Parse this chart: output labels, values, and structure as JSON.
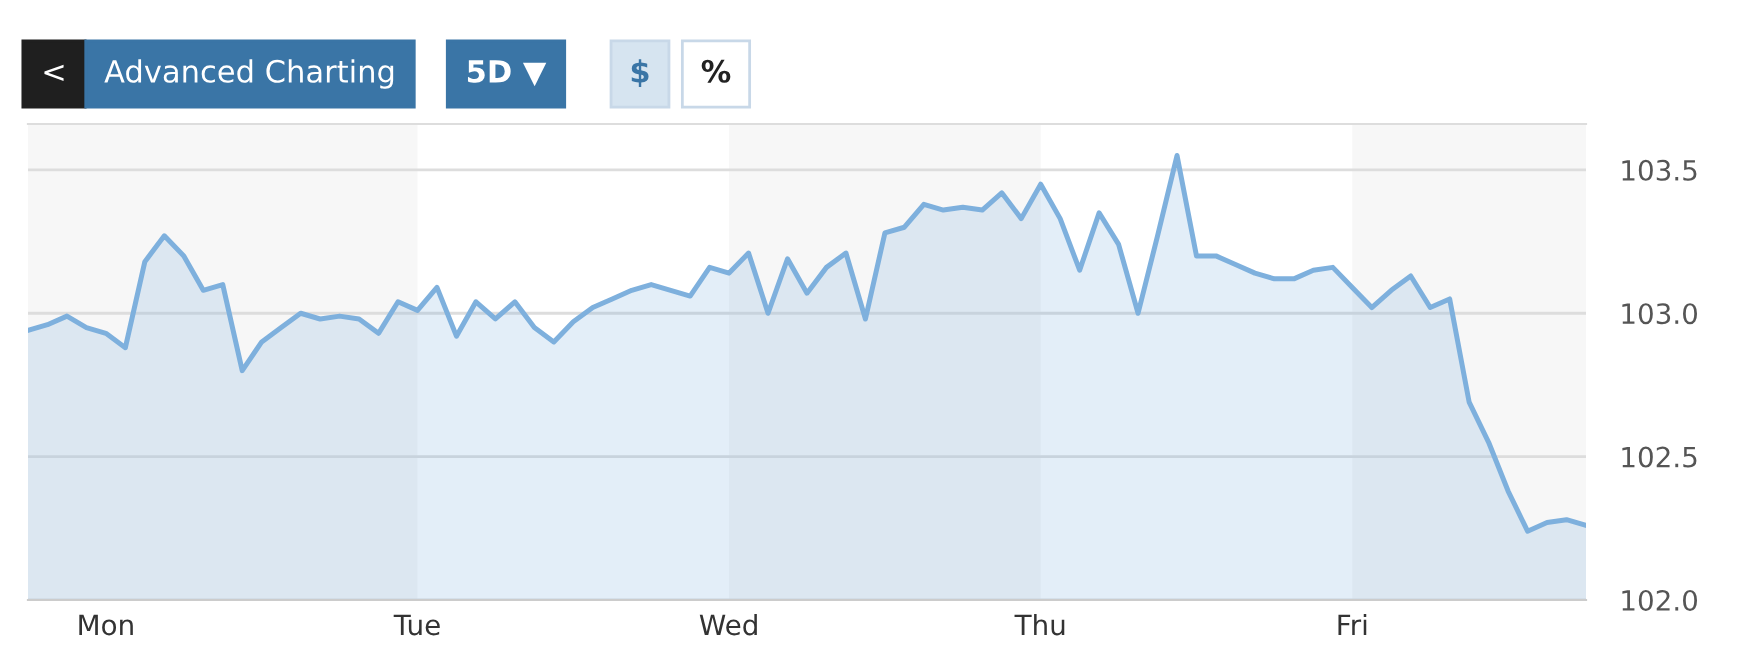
{
  "chart_data": {
    "type": "area",
    "categories": [
      null,
      null,
      null,
      null,
      "Mon",
      null,
      null,
      null,
      null,
      null,
      null,
      null,
      null,
      null,
      null,
      null,
      null,
      null,
      null,
      null,
      "Tue",
      null,
      null,
      null,
      null,
      null,
      null,
      null,
      null,
      null,
      null,
      null,
      null,
      null,
      null,
      null,
      "Wed",
      null,
      null,
      null,
      null,
      null,
      null,
      null,
      null,
      null,
      null,
      null,
      null,
      null,
      null,
      null,
      "Thu",
      null,
      null,
      null,
      null,
      null,
      null,
      null,
      null,
      null,
      null,
      null,
      null,
      null,
      null,
      null,
      "Fri",
      null,
      null,
      null,
      null,
      null,
      null,
      null,
      null,
      null,
      null,
      null,
      null
    ],
    "series": [
      {
        "color": "#7eb0dd",
        "values": [
          102.94,
          102.96,
          102.99,
          102.95,
          102.93,
          102.88,
          103.18,
          103.27,
          103.2,
          103.08,
          103.1,
          102.8,
          102.9,
          102.95,
          103.0,
          102.98,
          102.99,
          102.98,
          102.93,
          103.04,
          103.01,
          103.09,
          102.92,
          103.04,
          102.98,
          103.04,
          102.95,
          102.9,
          102.97,
          103.02,
          103.05,
          103.08,
          103.1,
          103.08,
          103.06,
          103.16,
          103.14,
          103.21,
          103.0,
          103.19,
          103.07,
          103.16,
          103.21,
          102.98,
          103.28,
          103.3,
          103.38,
          103.36,
          103.37,
          103.36,
          103.42,
          103.33,
          103.45,
          103.33,
          103.15,
          103.35,
          103.24,
          103.0,
          103.27,
          103.55,
          103.2,
          103.2,
          103.17,
          103.14,
          103.12,
          103.12,
          103.15,
          103.16,
          103.09,
          103.02,
          103.08,
          103.13,
          103.02,
          103.05,
          102.69,
          102.55,
          102.38,
          102.24,
          102.27,
          102.28,
          102.26
        ]
      }
    ],
    "ylim": [
      102.0,
      103.66
    ],
    "yticks": [
      {
        "value": 102.0,
        "label": "102.0"
      },
      {
        "value": 102.5,
        "label": "102.5"
      },
      {
        "value": 103.0,
        "label": "103.0"
      },
      {
        "value": 103.5,
        "label": "103.5"
      }
    ],
    "grid": "y",
    "bands": [
      {
        "axis": "x",
        "from": "Tue",
        "to": "Wed",
        "color": "#ffffff"
      },
      {
        "axis": "x",
        "from": "Thu",
        "to": "Fri",
        "color": "#ffffff"
      }
    ],
    "annotations": [
      "<",
      "Advanced Charting",
      "5D ▼",
      "$",
      "%"
    ]
  }
}
